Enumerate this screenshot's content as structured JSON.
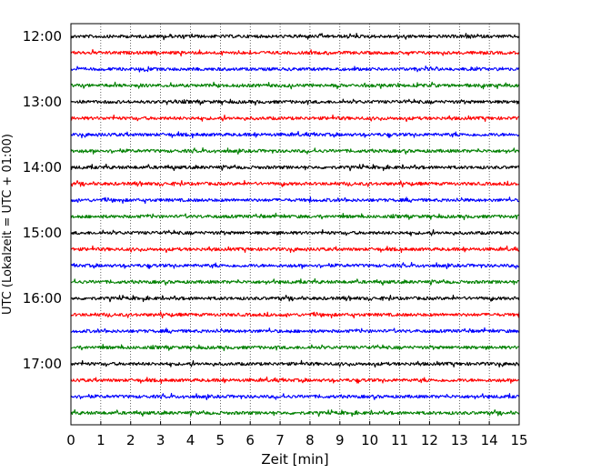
{
  "chart_data": {
    "type": "line",
    "title": "",
    "xlabel": "Zeit  [min]",
    "ylabel": "UTC (Lokalzeit = UTC + 01:00)",
    "xlim": [
      0,
      15
    ],
    "x_ticks": [
      "0",
      "1",
      "2",
      "3",
      "4",
      "5",
      "6",
      "7",
      "8",
      "9",
      "10",
      "11",
      "12",
      "13",
      "14",
      "15"
    ],
    "y_ticks": [
      "12:00",
      "13:00",
      "14:00",
      "15:00",
      "16:00",
      "17:00"
    ],
    "grid": "vertical-dotted",
    "trace_colors": [
      "#000000",
      "#ff0000",
      "#0000ff",
      "#008000"
    ],
    "series": [
      {
        "start": "12:00",
        "color": "#000000"
      },
      {
        "start": "12:15",
        "color": "#ff0000"
      },
      {
        "start": "12:30",
        "color": "#0000ff"
      },
      {
        "start": "12:45",
        "color": "#008000"
      },
      {
        "start": "13:00",
        "color": "#000000"
      },
      {
        "start": "13:15",
        "color": "#ff0000"
      },
      {
        "start": "13:30",
        "color": "#0000ff"
      },
      {
        "start": "13:45",
        "color": "#008000"
      },
      {
        "start": "14:00",
        "color": "#000000"
      },
      {
        "start": "14:15",
        "color": "#ff0000"
      },
      {
        "start": "14:30",
        "color": "#0000ff"
      },
      {
        "start": "14:45",
        "color": "#008000"
      },
      {
        "start": "15:00",
        "color": "#000000"
      },
      {
        "start": "15:15",
        "color": "#ff0000"
      },
      {
        "start": "15:30",
        "color": "#0000ff"
      },
      {
        "start": "15:45",
        "color": "#008000"
      },
      {
        "start": "16:00",
        "color": "#000000"
      },
      {
        "start": "16:15",
        "color": "#ff0000"
      },
      {
        "start": "16:30",
        "color": "#0000ff"
      },
      {
        "start": "16:45",
        "color": "#008000"
      },
      {
        "start": "17:00",
        "color": "#000000"
      },
      {
        "start": "17:15",
        "color": "#ff0000"
      },
      {
        "start": "17:30",
        "color": "#0000ff"
      },
      {
        "start": "17:45",
        "color": "#008000"
      }
    ]
  }
}
